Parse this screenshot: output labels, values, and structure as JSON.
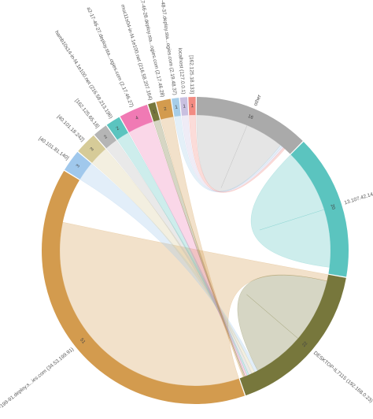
{
  "chart_data": {
    "type": "chord",
    "nodes": [
      {
        "name": "other",
        "color": "#aaaaaa",
        "value": 16
      },
      {
        "name": "13.107.42.14",
        "color": "#5bc4bf",
        "value": 20
      },
      {
        "name": "DESKTOP-IL7115 (192.168.0.23)",
        "color": "#77773c",
        "value": 22
      },
      {
        "name": "a23-53-199-91.deploy.s...ies.com (34.53.199.91)",
        "color": "#d39b4e",
        "value": 51
      },
      {
        "name": "[40.101.81.140]",
        "color": "#a0c8ec",
        "value": 3
      },
      {
        "name": "[40.101.18.242]",
        "color": "#d6cb98",
        "value": 3
      },
      {
        "name": "[162.125.65.18]",
        "color": "#b5b5b5",
        "value": 2
      },
      {
        "name": "hamb10s14-in-f4.1e100.net (216.58.213.196)",
        "color": "#5bc4bf",
        "value": 2
      },
      {
        "name": "a2-17-46-27.deploy.sta...ogies.com (2.17.46.27)",
        "color": "#f07ab4",
        "value": 4
      },
      {
        "name": "muc11s04-in-f4.1e100.net (216.58.207.164)",
        "color": "#77773c",
        "value": 1
      },
      {
        "name": "a2-17-46-28.deploy.sta...ogies.com (2.17.46.28)",
        "color": "#d39b4e",
        "value": 2
      },
      {
        "name": "a2-19-48-37.deploy.sta...ogies.com (2.19.48.37)",
        "color": "#a6cde8",
        "value": 1
      },
      {
        "name": "localhost (127.0.0.1)",
        "color": "#c9c0e0",
        "value": 1
      },
      {
        "name": "[162.125.18.133]",
        "color": "#f28b82",
        "value": 1
      }
    ],
    "ribbons": [
      {
        "source": 0,
        "target": 0,
        "source_value": 8,
        "target_value": 6
      },
      {
        "source": 1,
        "target": 1,
        "source_value": 10,
        "target_value": 9
      },
      {
        "source": 3,
        "target": 2,
        "source_value": 44,
        "target_value": 1
      },
      {
        "source": 2,
        "target": 2,
        "source_value": 10,
        "target_value": 8
      },
      {
        "source": 4,
        "target": 2,
        "source_value": 3,
        "target_value": 0.5
      },
      {
        "source": 5,
        "target": 2,
        "source_value": 3,
        "target_value": 0.5
      },
      {
        "source": 6,
        "target": 2,
        "source_value": 2,
        "target_value": 0.5
      },
      {
        "source": 7,
        "target": 2,
        "source_value": 2,
        "target_value": 0.3
      },
      {
        "source": 8,
        "target": 2,
        "source_value": 4,
        "target_value": 0.3
      },
      {
        "source": 9,
        "target": 2,
        "source_value": 1,
        "target_value": 0.2
      },
      {
        "source": 10,
        "target": 2,
        "source_value": 2,
        "target_value": 0.2
      },
      {
        "source": 11,
        "target": 0,
        "source_value": 1,
        "target_value": 0.3
      },
      {
        "source": 12,
        "target": 0,
        "source_value": 1,
        "target_value": 0.3
      },
      {
        "source": 13,
        "target": 0,
        "source_value": 1,
        "target_value": 0.3
      }
    ]
  }
}
